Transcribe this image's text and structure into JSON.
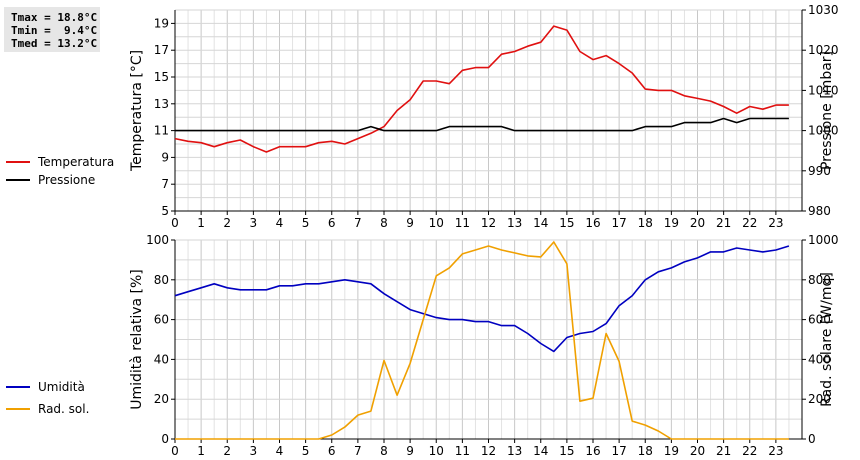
{
  "stats": {
    "tmax": "Tmax = 18.8°C",
    "tmin": "Tmin =  9.4°C",
    "tmed": "Tmed = 13.2°C"
  },
  "chart_data": [
    {
      "type": "line",
      "x_ticks": [
        "0",
        "1",
        "2",
        "3",
        "4",
        "5",
        "6",
        "7",
        "8",
        "9",
        "10",
        "11",
        "12",
        "13",
        "14",
        "15",
        "16",
        "17",
        "18",
        "19",
        "20",
        "21",
        "22",
        "23"
      ],
      "xlim": [
        0,
        24
      ],
      "ylabel_left": "Temperatura [°C]",
      "ylabel_right": "Pressione [mbar]",
      "ylim_left": [
        5,
        20
      ],
      "yticks_left": [
        5,
        7,
        9,
        11,
        13,
        15,
        17,
        19
      ],
      "ylim_right": [
        980,
        1030
      ],
      "yticks_right": [
        980,
        990,
        1000,
        1010,
        1020,
        1030
      ],
      "grid": true,
      "legend_position": "left",
      "series": [
        {
          "name": "Temperatura",
          "axis": "left",
          "color": "#e01010",
          "x": [
            0,
            0.5,
            1,
            1.5,
            2,
            2.5,
            3,
            3.5,
            4,
            4.5,
            5,
            5.5,
            6,
            6.5,
            7,
            7.5,
            8,
            8.5,
            9,
            9.5,
            10,
            10.5,
            11,
            11.5,
            12,
            12.5,
            13,
            13.5,
            14,
            14.5,
            15,
            15.5,
            16,
            16.5,
            17,
            17.5,
            18,
            18.5,
            19,
            19.5,
            20,
            20.5,
            21,
            21.5,
            22,
            22.5,
            23,
            23.5
          ],
          "values": [
            10.4,
            10.2,
            10.1,
            9.8,
            10.1,
            10.3,
            9.8,
            9.4,
            9.8,
            9.8,
            9.8,
            10.1,
            10.2,
            10.0,
            10.4,
            10.8,
            11.3,
            12.5,
            13.3,
            14.7,
            14.7,
            14.5,
            15.5,
            15.7,
            15.7,
            16.7,
            16.9,
            17.3,
            17.6,
            18.8,
            18.5,
            16.9,
            16.3,
            16.6,
            16.0,
            15.3,
            14.1,
            14.0,
            14.0,
            13.6,
            13.4,
            13.2,
            12.8,
            12.3,
            12.8,
            12.6,
            12.9,
            12.9
          ]
        },
        {
          "name": "Pressione",
          "axis": "right",
          "color": "#000000",
          "x": [
            0,
            7,
            7.5,
            8,
            10,
            10.5,
            12.5,
            13,
            17,
            17.5,
            18,
            19,
            19.5,
            20.5,
            21,
            21.5,
            22,
            23.5
          ],
          "values": [
            1000,
            1000,
            1001,
            1000,
            1000,
            1001,
            1001,
            1000,
            1000,
            1000,
            1001,
            1001,
            1002,
            1002,
            1003,
            1002,
            1003,
            1003
          ]
        }
      ]
    },
    {
      "type": "line",
      "x_ticks": [
        "0",
        "1",
        "2",
        "3",
        "4",
        "5",
        "6",
        "7",
        "8",
        "9",
        "10",
        "11",
        "12",
        "13",
        "14",
        "15",
        "16",
        "17",
        "18",
        "19",
        "20",
        "21",
        "22",
        "23"
      ],
      "xlim": [
        0,
        24
      ],
      "ylabel_left": "Umidità relativa [%]",
      "ylabel_right": "Rad. solare [W/mq]",
      "ylim_left": [
        0,
        100
      ],
      "yticks_left": [
        0,
        20,
        40,
        60,
        80,
        100
      ],
      "ylim_right": [
        0,
        1000
      ],
      "yticks_right": [
        0,
        200,
        400,
        600,
        800,
        1000
      ],
      "grid": true,
      "legend_position": "left",
      "series": [
        {
          "name": "Umidità",
          "axis": "left",
          "color": "#0000c0",
          "x": [
            0,
            0.5,
            1,
            1.5,
            2,
            2.5,
            3,
            3.5,
            4,
            4.5,
            5,
            5.5,
            6,
            6.5,
            7,
            7.5,
            8,
            8.5,
            9,
            9.5,
            10,
            10.5,
            11,
            11.5,
            12,
            12.5,
            13,
            13.5,
            14,
            14.5,
            15,
            15.5,
            16,
            16.5,
            17,
            17.5,
            18,
            18.5,
            19,
            19.5,
            20,
            20.5,
            21,
            21.5,
            22,
            22.5,
            23,
            23.5
          ],
          "values": [
            72,
            74,
            76,
            78,
            76,
            75,
            75,
            75,
            77,
            77,
            78,
            78,
            79,
            80,
            79,
            78,
            73,
            69,
            65,
            63,
            61,
            60,
            60,
            59,
            59,
            57,
            57,
            53,
            48,
            44,
            51,
            53,
            54,
            58,
            67,
            72,
            80,
            84,
            86,
            89,
            91,
            94,
            94,
            96,
            95,
            94,
            95,
            97
          ]
        },
        {
          "name": "Rad. sol.",
          "axis": "right",
          "color": "#f0a000",
          "x": [
            0,
            5.5,
            6,
            6.5,
            7,
            7.5,
            8,
            8.5,
            9,
            9.5,
            10,
            10.5,
            11,
            11.5,
            12,
            12.5,
            13,
            13.5,
            14,
            14.5,
            15,
            15.5,
            16,
            16.5,
            17,
            17.5,
            18,
            18.5,
            19,
            23.5
          ],
          "values": [
            0,
            0,
            20,
            60,
            120,
            140,
            395,
            220,
            380,
            600,
            820,
            860,
            930,
            950,
            970,
            950,
            935,
            920,
            915,
            990,
            880,
            190,
            205,
            530,
            390,
            90,
            70,
            40,
            0,
            0
          ]
        }
      ]
    }
  ]
}
